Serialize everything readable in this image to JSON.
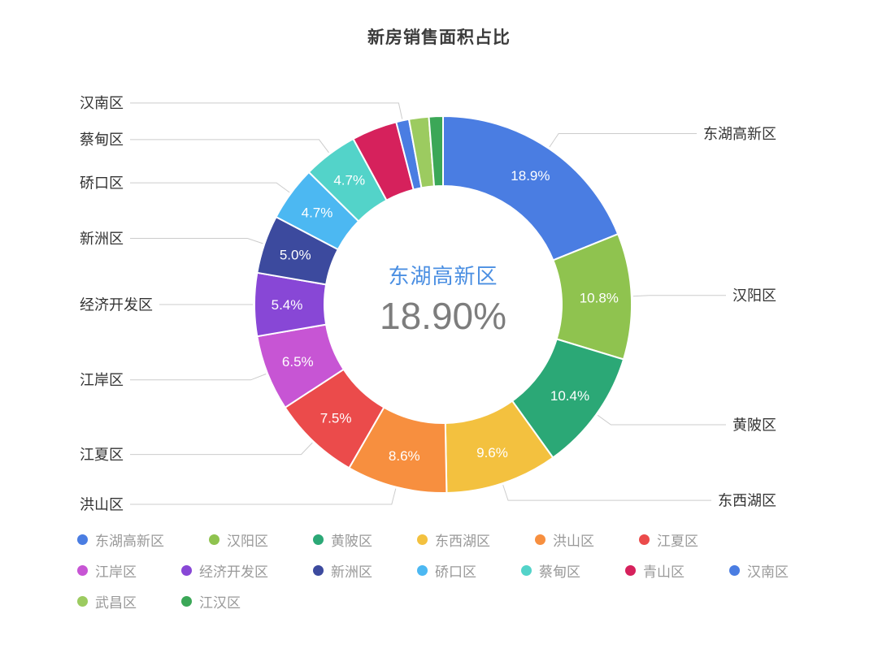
{
  "chart_data": {
    "type": "pie",
    "subtype": "donut",
    "title": "新房销售面积占比",
    "legend_position": "bottom",
    "legend_rows": [
      6,
      7,
      2
    ],
    "center": {
      "name": "东湖高新区",
      "value": "18.90%"
    },
    "series": [
      {
        "name": "东湖高新区",
        "value": 18.9,
        "label": "18.9%",
        "color": "#4A7DE2",
        "callout": true
      },
      {
        "name": "汉阳区",
        "value": 10.8,
        "label": "10.8%",
        "color": "#8FC34F",
        "callout": true
      },
      {
        "name": "黄陂区",
        "value": 10.4,
        "label": "10.4%",
        "color": "#2BA876",
        "callout": true
      },
      {
        "name": "东西湖区",
        "value": 9.6,
        "label": "9.6%",
        "color": "#F3C13F",
        "callout": true
      },
      {
        "name": "洪山区",
        "value": 8.6,
        "label": "8.6%",
        "color": "#F78F3F",
        "callout": true
      },
      {
        "name": "江夏区",
        "value": 7.5,
        "label": "7.5%",
        "color": "#EB4B4B",
        "callout": true
      },
      {
        "name": "江岸区",
        "value": 6.5,
        "label": "6.5%",
        "color": "#C755D4",
        "callout": true
      },
      {
        "name": "经济开发区",
        "value": 5.4,
        "label": "5.4%",
        "color": "#8847D6",
        "callout": true
      },
      {
        "name": "新洲区",
        "value": 5.0,
        "label": "5.0%",
        "color": "#3C4A9E",
        "callout": true
      },
      {
        "name": "硚口区",
        "value": 4.7,
        "label": "4.7%",
        "color": "#4CB8F2",
        "callout": true
      },
      {
        "name": "蔡甸区",
        "value": 4.7,
        "label": "4.7%",
        "color": "#53D3C9",
        "callout": true
      },
      {
        "name": "青山区",
        "value": 3.9,
        "label": "",
        "color": "#D6215C",
        "callout": false
      },
      {
        "name": "汉南区",
        "value": 1.1,
        "label": "",
        "color": "#4A7DE2",
        "callout": true
      },
      {
        "name": "武昌区",
        "value": 1.7,
        "label": "",
        "color": "#9CCB60",
        "callout": false
      },
      {
        "name": "江汉区",
        "value": 1.2,
        "label": "",
        "color": "#3BA757",
        "callout": false
      }
    ]
  }
}
